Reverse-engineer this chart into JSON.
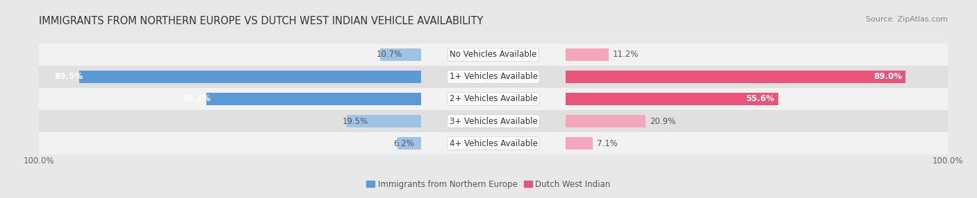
{
  "title": "IMMIGRANTS FROM NORTHERN EUROPE VS DUTCH WEST INDIAN VEHICLE AVAILABILITY",
  "source": "Source: ZipAtlas.com",
  "categories": [
    "No Vehicles Available",
    "1+ Vehicles Available",
    "2+ Vehicles Available",
    "3+ Vehicles Available",
    "4+ Vehicles Available"
  ],
  "left_values": [
    10.7,
    89.5,
    56.1,
    19.5,
    6.2
  ],
  "right_values": [
    11.2,
    89.0,
    55.6,
    20.9,
    7.1
  ],
  "left_color_large": "#5b9bd5",
  "left_color_small": "#9dc3e6",
  "right_color_large": "#e8547a",
  "right_color_small": "#f4a7bc",
  "left_label": "Immigrants from Northern Europe",
  "right_label": "Dutch West Indian",
  "bar_height": 0.58,
  "bg_color": "#e8e8e8",
  "row_colors": [
    "#f2f2f2",
    "#e0e0e0"
  ],
  "max_value": 100.0,
  "title_fontsize": 10.5,
  "source_fontsize": 8,
  "value_fontsize": 8.5,
  "category_fontsize": 8.5,
  "legend_fontsize": 8.5,
  "figsize": [
    14.06,
    2.86
  ],
  "dpi": 100
}
